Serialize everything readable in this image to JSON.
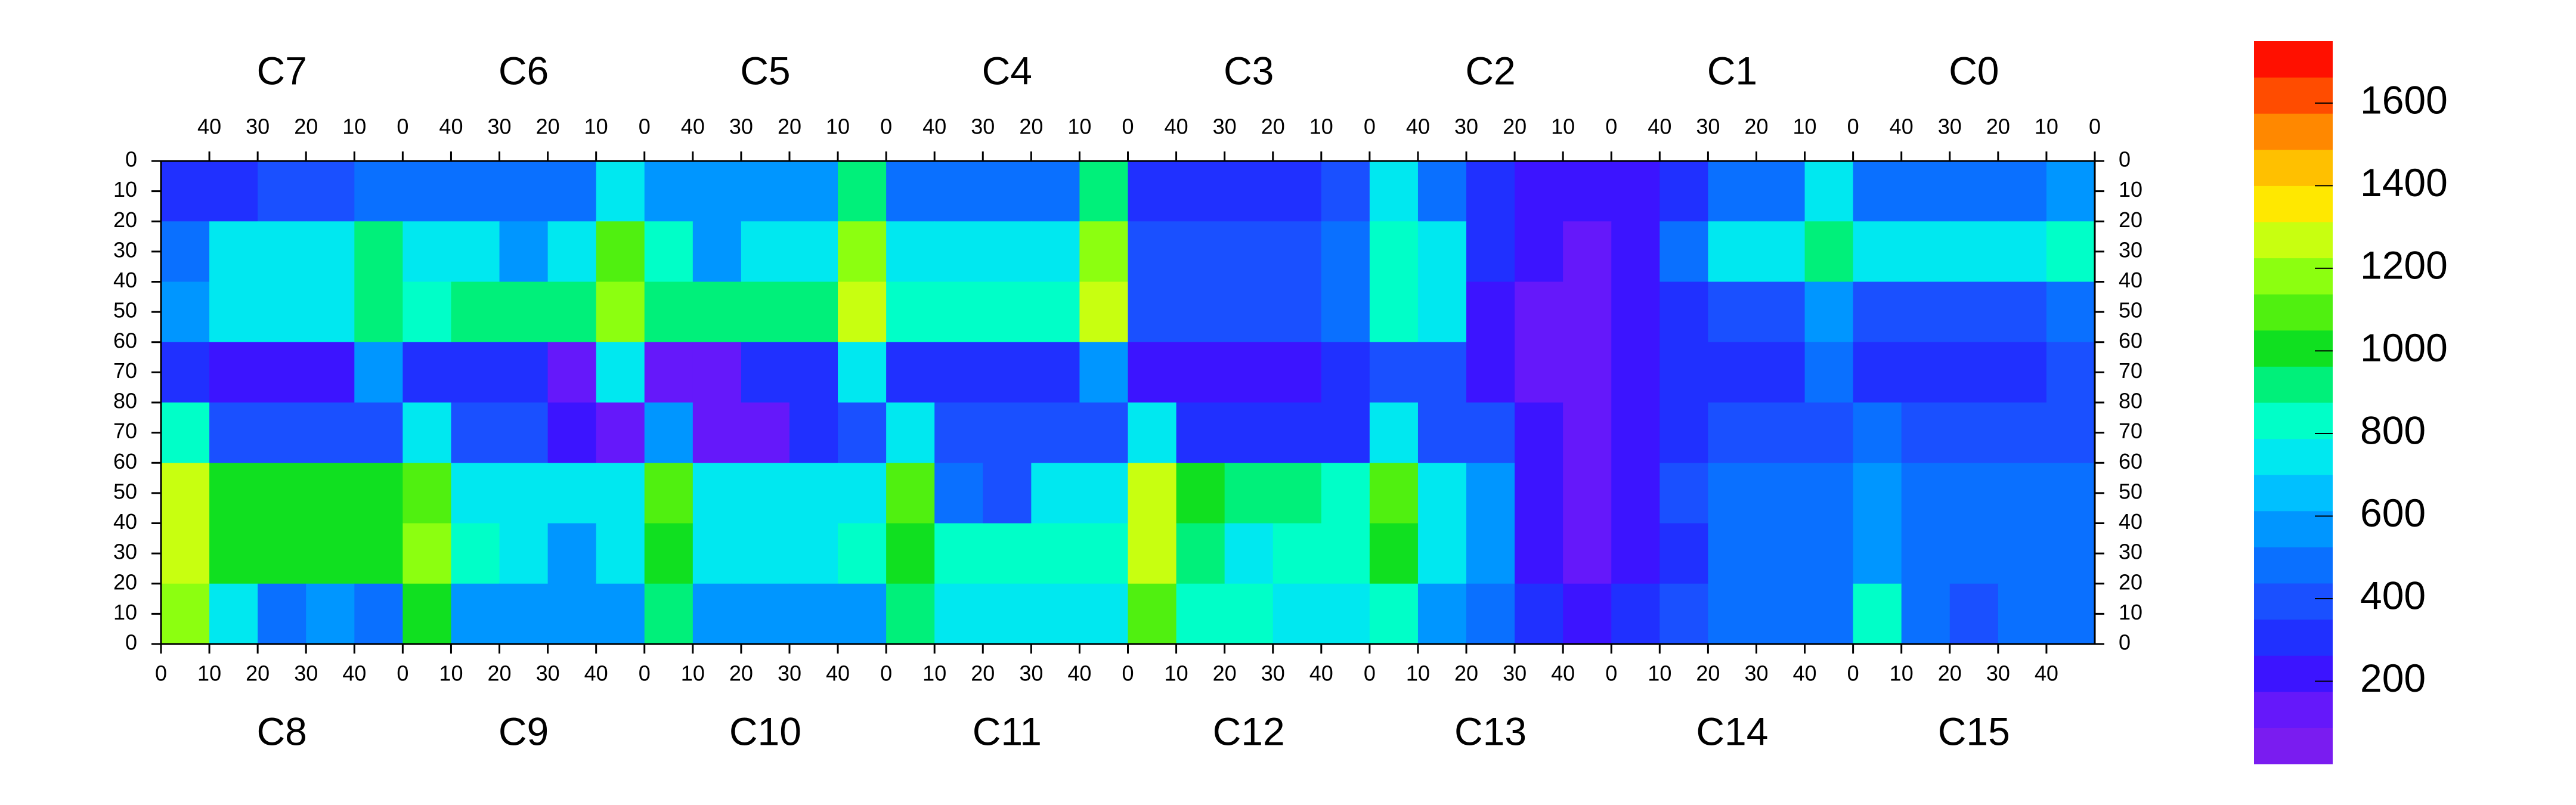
{
  "chart_data": {
    "type": "heatmap",
    "top_chips": [
      "C7",
      "C6",
      "C5",
      "C4",
      "C3",
      "C2",
      "C1",
      "C0"
    ],
    "bottom_chips": [
      "C8",
      "C9",
      "C10",
      "C11",
      "C12",
      "C13",
      "C14",
      "C15"
    ],
    "xlim": [
      0,
      50
    ],
    "xticks": [
      0,
      10,
      20,
      30,
      40
    ],
    "ylim": [
      0,
      80
    ],
    "yticks": [
      0,
      10,
      20,
      30,
      40,
      50,
      60,
      70,
      80
    ],
    "top_values": [
      [
        300,
        300,
        400,
        400,
        500,
        500,
        500,
        500,
        500,
        700,
        600,
        600,
        600,
        600,
        900,
        500,
        500,
        500,
        500,
        900,
        300,
        300,
        300,
        300,
        400,
        700,
        500,
        300,
        200,
        200,
        250,
        300,
        500,
        500,
        700,
        500,
        500,
        500,
        500,
        600
      ],
      [
        500,
        700,
        700,
        700,
        900,
        700,
        700,
        600,
        700,
        1100,
        800,
        600,
        700,
        700,
        1200,
        700,
        700,
        700,
        700,
        1200,
        400,
        400,
        400,
        400,
        500,
        800,
        700,
        300,
        200,
        150,
        200,
        500,
        700,
        700,
        900,
        700,
        700,
        700,
        700,
        800
      ],
      [
        600,
        700,
        700,
        700,
        900,
        800,
        900,
        900,
        900,
        1200,
        900,
        900,
        900,
        900,
        1300,
        800,
        800,
        800,
        800,
        1300,
        400,
        400,
        400,
        400,
        500,
        800,
        700,
        250,
        150,
        150,
        200,
        300,
        400,
        400,
        600,
        400,
        400,
        400,
        400,
        500
      ],
      [
        300,
        250,
        250,
        250,
        600,
        300,
        300,
        300,
        150,
        700,
        150,
        150,
        300,
        300,
        700,
        300,
        300,
        300,
        300,
        600,
        200,
        200,
        200,
        200,
        300,
        400,
        400,
        200,
        150,
        150,
        200,
        300,
        300,
        300,
        500,
        300,
        300,
        300,
        300,
        400
      ]
    ],
    "bottom_values": [
      [
        800,
        400,
        400,
        400,
        400,
        700,
        350,
        350,
        200,
        150,
        600,
        150,
        150,
        300,
        400,
        700,
        400,
        400,
        400,
        400,
        700,
        300,
        300,
        300,
        300,
        700,
        400,
        400,
        200,
        150,
        200,
        300,
        400,
        400,
        400,
        500,
        400,
        400,
        400,
        400
      ],
      [
        1300,
        1000,
        1000,
        1000,
        1000,
        1100,
        700,
        700,
        700,
        700,
        1100,
        700,
        700,
        700,
        700,
        1100,
        500,
        400,
        700,
        700,
        1300,
        1000,
        900,
        900,
        800,
        1100,
        700,
        600,
        200,
        150,
        200,
        400,
        500,
        500,
        500,
        600,
        450,
        450,
        450,
        450
      ],
      [
        1300,
        1000,
        1000,
        1000,
        1000,
        1200,
        800,
        700,
        600,
        700,
        1000,
        700,
        700,
        700,
        800,
        1000,
        800,
        800,
        800,
        800,
        1300,
        900,
        700,
        800,
        800,
        1000,
        700,
        600,
        200,
        150,
        200,
        300,
        500,
        500,
        500,
        600,
        500,
        500,
        500,
        500
      ],
      [
        1200,
        700,
        500,
        600,
        500,
        1000,
        600,
        600,
        600,
        600,
        900,
        600,
        600,
        600,
        600,
        900,
        700,
        700,
        700,
        700,
        1100,
        800,
        800,
        700,
        700,
        800,
        600,
        500,
        300,
        250,
        300,
        400,
        500,
        500,
        500,
        800,
        500,
        400,
        500,
        500
      ]
    ],
    "zlim": [
      0,
      1750
    ],
    "zticks": [
      200,
      400,
      600,
      800,
      1000,
      1200,
      1400,
      1600
    ],
    "colors": [
      "#7a1cf0",
      "#6518fa",
      "#3c14ff",
      "#2030ff",
      "#1a50ff",
      "#0a70ff",
      "#0096ff",
      "#00c0ff",
      "#00e8f0",
      "#00ffc8",
      "#00f07a",
      "#10e020",
      "#50f010",
      "#8cff10",
      "#c8ff10",
      "#ffe800",
      "#ffc000",
      "#ff8800",
      "#ff4c00",
      "#ff1000"
    ]
  }
}
